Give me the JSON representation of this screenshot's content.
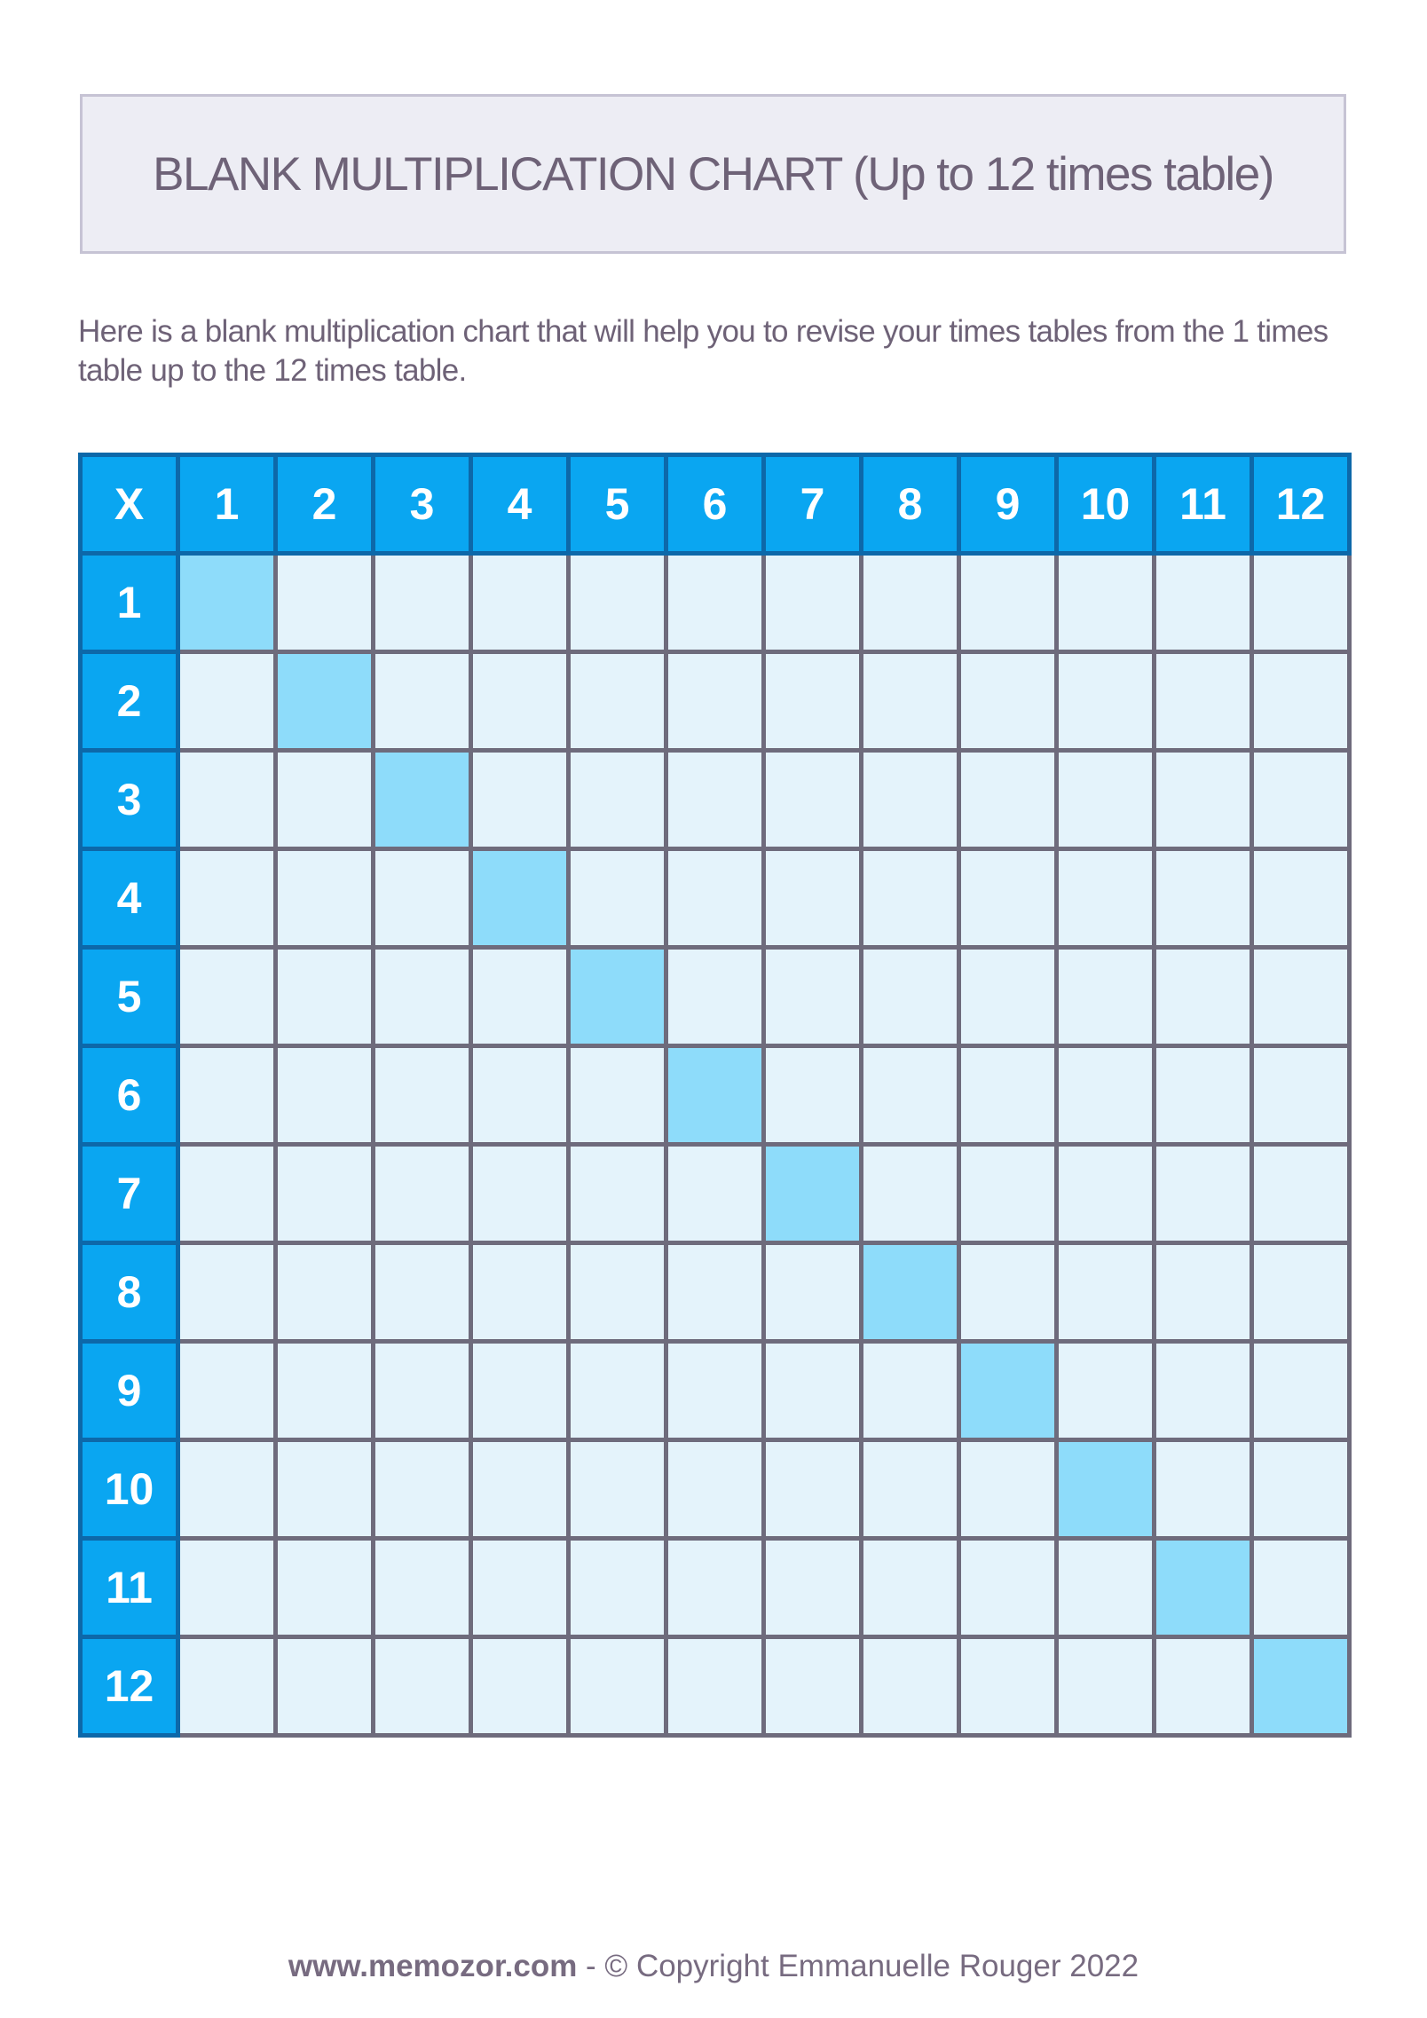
{
  "title_box": {
    "title": "BLANK MULTIPLICATION CHART (Up to 12 times table)"
  },
  "intro": {
    "lines": [
      "Here is a blank multiplication chart that will help you to revise your times tables from the 1 times",
      "table up to the 12 times table."
    ]
  },
  "table": {
    "corner_label": "X",
    "column_headers": [
      "1",
      "2",
      "3",
      "4",
      "5",
      "6",
      "7",
      "8",
      "9",
      "10",
      "11",
      "12"
    ],
    "row_headers": [
      "1",
      "2",
      "3",
      "4",
      "5",
      "6",
      "7",
      "8",
      "9",
      "10",
      "11",
      "12"
    ],
    "body_cells_blank": true,
    "diagonal_highlighted": true
  },
  "footer": {
    "site": "www.memozor.com",
    "copyright": " - © Copyright Emmanuelle Rouger 2022"
  },
  "colors": {
    "page_bg": "#ffffff",
    "title_box_bg": "#ededf4",
    "title_box_border": "#c6c3d4",
    "text_color": "#6e6277",
    "header_bg": "#0aa6f1",
    "header_border": "#0d68a9",
    "header_text": "#ffffff",
    "cell_bg": "#e4f3fb",
    "cell_border": "#6e6b7c",
    "diagonal_cell_bg": "#8edcfa",
    "footer_text": "#776b80"
  }
}
